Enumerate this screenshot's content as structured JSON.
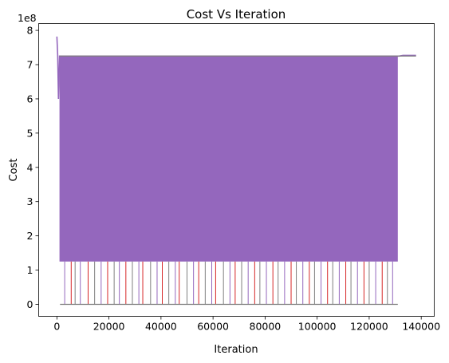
{
  "chart_data": {
    "type": "line",
    "title": "Cost Vs Iteration",
    "xlabel": "Iteration",
    "ylabel": "Cost",
    "y_offset_label": "1e8",
    "xlim": [
      -7000,
      145000
    ],
    "ylim": [
      -0.35,
      8.2
    ],
    "y_scale_note": "y values in units of 1e8",
    "x_ticks": [
      0,
      20000,
      40000,
      60000,
      80000,
      100000,
      120000,
      140000
    ],
    "x_tick_labels": [
      "0",
      "20000",
      "40000",
      "60000",
      "80000",
      "100000",
      "120000",
      "140000"
    ],
    "y_ticks": [
      0,
      1,
      2,
      3,
      4,
      5,
      6,
      7,
      8
    ],
    "y_tick_labels": [
      "0",
      "1",
      "2",
      "3",
      "4",
      "5",
      "6",
      "7",
      "8"
    ],
    "grid": false,
    "legend": "none",
    "colors": {
      "fill_series": "#9467bd",
      "accent_series": "#d62728",
      "tail_series": "#7f7f7f"
    },
    "series": [
      {
        "color": "#9467bd",
        "band_top": 7.25,
        "band_bottom": 1.25,
        "x": [
          0,
          300,
          600,
          1000,
          131000,
          131500,
          133000,
          136000,
          138000
        ],
        "values": [
          7.82,
          7.28,
          6.0,
          7.25,
          7.25,
          7.25,
          7.27,
          7.27,
          7.27
        ]
      }
    ],
    "spike_x": [
      3000,
      5500,
      7000,
      9000,
      12000,
      14500,
      17000,
      19500,
      22000,
      24000,
      26500,
      29000,
      31500,
      33000,
      36000,
      38500,
      40500,
      43000,
      45500,
      47000,
      50000,
      52500,
      54500,
      57000,
      59500,
      61000,
      64000,
      66500,
      68500,
      71000,
      73500,
      76000,
      78000,
      80500,
      83000,
      85000,
      87500,
      90000,
      92000,
      94500,
      97000,
      99000,
      101500,
      104000,
      106000,
      108500,
      111000,
      113000,
      115500,
      118000,
      120000,
      122500,
      125000,
      127000,
      129000
    ],
    "spike_bottom": 0.0
  }
}
